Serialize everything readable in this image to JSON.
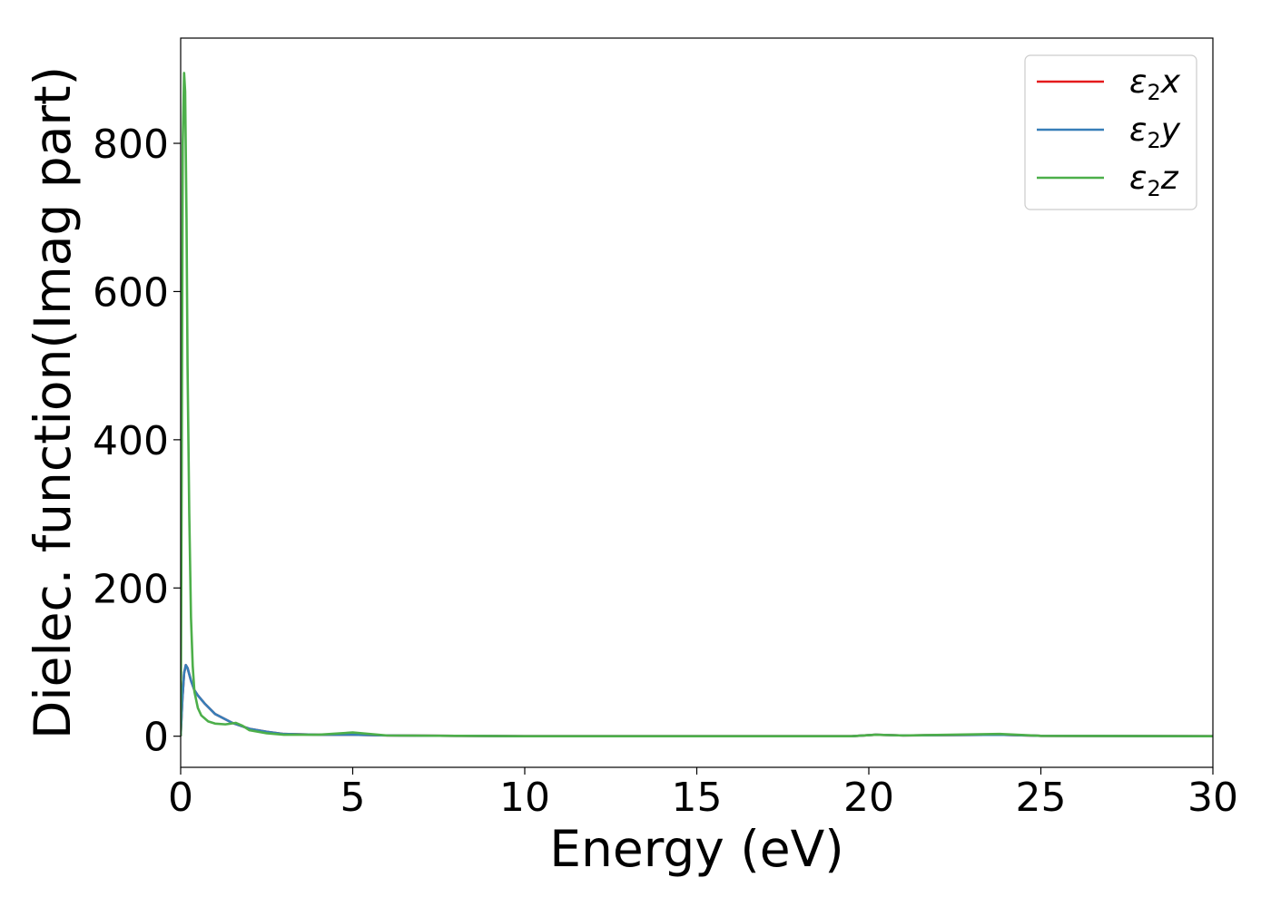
{
  "chart_data": {
    "type": "line",
    "title": "",
    "xlabel": "Energy (eV)",
    "ylabel": "Dielec. function(Imag part)",
    "xlim": [
      0,
      30
    ],
    "ylim": [
      -42,
      942
    ],
    "xticks": [
      0,
      5,
      10,
      15,
      20,
      25,
      30
    ],
    "yticks": [
      0,
      200,
      400,
      600,
      800
    ],
    "grid": false,
    "legend_position": "top-right",
    "colors": {
      "x": "#e41a1c",
      "y": "#377eb8",
      "z": "#4daf4a"
    },
    "series": [
      {
        "name": "ε₂x",
        "legend": {
          "sym": "ε",
          "sub": "2",
          "axis": "x"
        },
        "color": "#e41a1c",
        "x": [
          0,
          0.05,
          0.1,
          0.15,
          0.2,
          0.3,
          0.4,
          0.5,
          0.7,
          1.0,
          1.5,
          2.0,
          2.5,
          3.0,
          4.0,
          5.0,
          6.0,
          8.0,
          10,
          15,
          19.5,
          20.2,
          21,
          23.8,
          25,
          30
        ],
        "y": [
          0,
          50,
          85,
          96,
          92,
          75,
          62,
          55,
          44,
          30,
          18,
          10,
          6,
          3,
          2,
          2,
          1,
          0.5,
          0,
          0,
          0,
          2,
          1,
          2,
          0.5,
          0
        ]
      },
      {
        "name": "ε₂y",
        "legend": {
          "sym": "ε",
          "sub": "2",
          "axis": "y"
        },
        "color": "#377eb8",
        "x": [
          0,
          0.05,
          0.1,
          0.15,
          0.2,
          0.3,
          0.4,
          0.5,
          0.7,
          1.0,
          1.5,
          2.0,
          2.5,
          3.0,
          4.0,
          5.0,
          6.0,
          8.0,
          10,
          15,
          19.5,
          20.2,
          21,
          23.8,
          25,
          30
        ],
        "y": [
          0,
          50,
          85,
          96,
          92,
          75,
          62,
          55,
          44,
          30,
          18,
          10,
          6,
          3,
          2,
          2,
          1,
          0.5,
          0,
          0,
          0,
          2,
          1,
          2,
          0.5,
          0
        ]
      },
      {
        "name": "ε₂z",
        "legend": {
          "sym": "ε",
          "sub": "2",
          "axis": "z"
        },
        "color": "#4daf4a",
        "x": [
          0,
          0.03,
          0.06,
          0.1,
          0.13,
          0.17,
          0.2,
          0.25,
          0.3,
          0.35,
          0.4,
          0.5,
          0.6,
          0.8,
          1.0,
          1.3,
          1.6,
          1.8,
          2.0,
          2.5,
          3.0,
          4.0,
          5.0,
          6.0,
          8.0,
          10,
          15,
          19.5,
          20.2,
          21,
          23.8,
          25,
          30
        ],
        "y": [
          0,
          350,
          800,
          895,
          870,
          700,
          500,
          300,
          160,
          95,
          60,
          38,
          28,
          20,
          17,
          16,
          18,
          14,
          8,
          4,
          2,
          2,
          5,
          1,
          0.5,
          0,
          0,
          0,
          2,
          1,
          3,
          0.5,
          0
        ]
      }
    ]
  }
}
